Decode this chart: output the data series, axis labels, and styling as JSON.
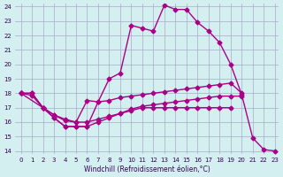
{
  "xlabel": "Windchill (Refroidissement éolien,°C)",
  "bg_color": "#d4eff0",
  "grid_color": "#aaaacc",
  "line_color": "#aa0088",
  "xlim": [
    0,
    23
  ],
  "ylim": [
    14,
    24
  ],
  "xticks": [
    0,
    1,
    2,
    3,
    4,
    5,
    6,
    7,
    8,
    9,
    10,
    11,
    12,
    13,
    14,
    15,
    16,
    17,
    18,
    19,
    20,
    21,
    22,
    23
  ],
  "yticks": [
    14,
    15,
    16,
    17,
    18,
    19,
    20,
    21,
    22,
    23,
    24
  ],
  "line1_x": [
    0,
    1,
    2,
    3,
    4,
    5,
    6,
    7,
    8,
    9,
    10,
    11,
    12,
    13,
    14,
    15,
    16,
    17,
    18,
    19,
    20,
    21,
    22,
    23
  ],
  "line1_y": [
    18,
    17.85,
    17,
    16.3,
    15.7,
    15.7,
    15.7,
    17.4,
    19.0,
    19.4,
    22.7,
    22.5,
    22.3,
    24.1,
    23.8,
    23.8,
    22.9,
    22.3,
    21.5,
    20.0,
    17.9,
    14.9,
    14.1,
    14.0
  ],
  "line2_x": [
    0,
    1,
    2,
    3,
    4,
    5,
    6,
    7,
    8,
    9,
    10,
    11,
    12,
    13,
    14,
    15,
    16,
    17,
    18,
    19,
    20,
    21,
    22,
    23
  ],
  "line2_y": [
    18,
    18,
    17,
    16.5,
    16.2,
    16.0,
    17.5,
    17.4,
    17.5,
    17.7,
    17.8,
    17.9,
    18.0,
    18.1,
    18.2,
    18.3,
    18.4,
    18.5,
    18.6,
    18.7,
    18.0,
    null,
    null,
    null
  ],
  "line3_x": [
    0,
    2,
    3,
    4,
    5,
    6,
    7,
    8,
    9,
    10,
    11,
    12,
    13,
    14,
    15,
    16,
    17,
    18,
    19,
    20,
    21,
    22,
    23
  ],
  "line3_y": [
    18,
    17,
    16.3,
    15.7,
    15.7,
    15.7,
    16.0,
    16.3,
    16.6,
    16.9,
    17.1,
    17.2,
    17.3,
    17.4,
    17.5,
    17.6,
    17.7,
    17.8,
    17.8,
    17.8,
    null,
    null,
    null
  ],
  "line4_x": [
    0,
    1,
    2,
    3,
    4,
    5,
    6,
    7,
    8,
    9,
    10,
    11,
    12,
    13,
    14,
    15,
    16,
    17,
    18,
    19,
    20,
    21,
    22,
    23
  ],
  "line4_y": [
    18,
    18,
    17,
    16.5,
    16.1,
    16.0,
    16.0,
    16.2,
    16.4,
    16.6,
    16.8,
    17.0,
    17.0,
    17.0,
    17.0,
    17.0,
    17.0,
    17.0,
    17.0,
    17.0,
    null,
    null,
    null
  ]
}
